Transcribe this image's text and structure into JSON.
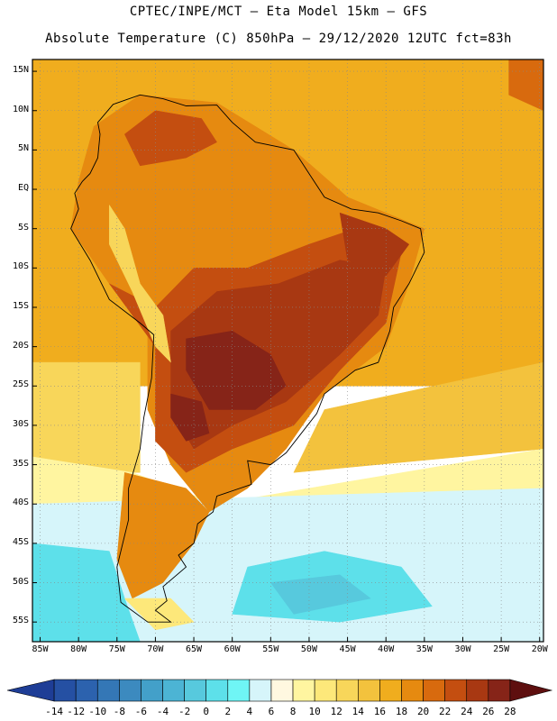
{
  "header": {
    "line1": "CPTEC/INPE/MCT —  Eta Model 15km — GFS",
    "line2": "Absolute Temperature (C) 850hPa — 29/12/2020 12UTC fct=83h"
  },
  "map": {
    "lon_range": [
      -86,
      -19.5
    ],
    "lat_range": [
      -57.5,
      16.5
    ],
    "lat_labels": [
      {
        "label": "15N",
        "lat": 15
      },
      {
        "label": "10N",
        "lat": 10
      },
      {
        "label": "5N",
        "lat": 5
      },
      {
        "label": "EQ",
        "lat": 0
      },
      {
        "label": "5S",
        "lat": -5
      },
      {
        "label": "10S",
        "lat": -10
      },
      {
        "label": "15S",
        "lat": -15
      },
      {
        "label": "20S",
        "lat": -20
      },
      {
        "label": "25S",
        "lat": -25
      },
      {
        "label": "30S",
        "lat": -30
      },
      {
        "label": "35S",
        "lat": -35
      },
      {
        "label": "40S",
        "lat": -40
      },
      {
        "label": "45S",
        "lat": -45
      },
      {
        "label": "50S",
        "lat": -50
      },
      {
        "label": "55S",
        "lat": -55
      }
    ],
    "lon_labels": [
      {
        "label": "85W",
        "lon": -85
      },
      {
        "label": "80W",
        "lon": -80
      },
      {
        "label": "75W",
        "lon": -75
      },
      {
        "label": "70W",
        "lon": -70
      },
      {
        "label": "65W",
        "lon": -65
      },
      {
        "label": "60W",
        "lon": -60
      },
      {
        "label": "55W",
        "lon": -55
      },
      {
        "label": "50W",
        "lon": -50
      },
      {
        "label": "45W",
        "lon": -45
      },
      {
        "label": "40W",
        "lon": -40
      },
      {
        "label": "35W",
        "lon": -35
      },
      {
        "label": "30W",
        "lon": -30
      },
      {
        "label": "25W",
        "lon": -25
      },
      {
        "label": "20W",
        "lon": -20
      }
    ]
  },
  "temperature_field": [
    {
      "name": "ocean-north",
      "temp": 17,
      "poly": [
        [
          -86,
          16.5
        ],
        [
          -19.5,
          16.5
        ],
        [
          -19.5,
          -25
        ],
        [
          -55,
          -25
        ],
        [
          -86,
          -25
        ]
      ]
    },
    {
      "name": "atlantic-south-warm",
      "temp": 15,
      "poly": [
        [
          -48,
          -28
        ],
        [
          -19.5,
          -22
        ],
        [
          -19.5,
          -33
        ],
        [
          -52,
          -36
        ]
      ]
    },
    {
      "name": "pacific-south",
      "temp": 13,
      "poly": [
        [
          -86,
          -22
        ],
        [
          -72,
          -22
        ],
        [
          -72,
          -36
        ],
        [
          -86,
          -36
        ]
      ]
    },
    {
      "name": "transition-band",
      "temp": 9,
      "poly": [
        [
          -86,
          -34
        ],
        [
          -73,
          -36
        ],
        [
          -62,
          -40
        ],
        [
          -50,
          -38
        ],
        [
          -19.5,
          -33
        ],
        [
          -19.5,
          -40
        ],
        [
          -86,
          -42
        ]
      ]
    },
    {
      "name": "cold-south",
      "temp": 5,
      "poly": [
        [
          -86,
          -40
        ],
        [
          -19.5,
          -38
        ],
        [
          -19.5,
          -57.5
        ],
        [
          -86,
          -57.5
        ]
      ]
    },
    {
      "name": "cold-core-sw",
      "temp": 1,
      "poly": [
        [
          -86,
          -45
        ],
        [
          -76,
          -46
        ],
        [
          -74,
          -52
        ],
        [
          -72,
          -57.5
        ],
        [
          -86,
          -57.5
        ]
      ]
    },
    {
      "name": "cold-core-se",
      "temp": 1,
      "poly": [
        [
          -58,
          -48
        ],
        [
          -48,
          -46
        ],
        [
          -38,
          -48
        ],
        [
          -34,
          -53
        ],
        [
          -46,
          -55
        ],
        [
          -60,
          -54
        ]
      ]
    },
    {
      "name": "cold-core-inner",
      "temp": -1,
      "poly": [
        [
          -55,
          -50
        ],
        [
          -46,
          -49
        ],
        [
          -42,
          -52
        ],
        [
          -52,
          -54
        ]
      ]
    },
    {
      "name": "southern-cone",
      "temp": 18,
      "poly": [
        [
          -74,
          -36
        ],
        [
          -66,
          -38
        ],
        [
          -63,
          -41
        ],
        [
          -65,
          -45
        ],
        [
          -69,
          -50
        ],
        [
          -73,
          -52
        ],
        [
          -75,
          -47
        ]
      ]
    },
    {
      "name": "patagonia-tip",
      "temp": 11,
      "poly": [
        [
          -74,
          -52
        ],
        [
          -68,
          -52
        ],
        [
          -65,
          -55
        ],
        [
          -70,
          -56
        ]
      ]
    },
    {
      "name": "continent-base",
      "temp": 19,
      "poly": [
        [
          -78,
          8
        ],
        [
          -72,
          12
        ],
        [
          -62,
          11
        ],
        [
          -52,
          5
        ],
        [
          -45,
          -1
        ],
        [
          -35,
          -5
        ],
        [
          -37,
          -12
        ],
        [
          -40,
          -20
        ],
        [
          -48,
          -26
        ],
        [
          -53,
          -33
        ],
        [
          -58,
          -38
        ],
        [
          -63,
          -41
        ],
        [
          -68,
          -35
        ],
        [
          -71,
          -28
        ],
        [
          -71,
          -18
        ],
        [
          -76,
          -12
        ],
        [
          -81,
          -5
        ],
        [
          -80,
          1
        ]
      ]
    },
    {
      "name": "continent-warm",
      "temp": 22,
      "poly": [
        [
          -76,
          -12
        ],
        [
          -70,
          -15
        ],
        [
          -65,
          -10
        ],
        [
          -58,
          -10
        ],
        [
          -50,
          -7
        ],
        [
          -44,
          -5
        ],
        [
          -38,
          -8
        ],
        [
          -40,
          -17
        ],
        [
          -46,
          -23
        ],
        [
          -52,
          -30
        ],
        [
          -60,
          -33
        ],
        [
          -66,
          -36
        ],
        [
          -70,
          -32
        ],
        [
          -70,
          -20
        ]
      ]
    },
    {
      "name": "continent-hot",
      "temp": 24,
      "poly": [
        [
          -68,
          -18
        ],
        [
          -62,
          -13
        ],
        [
          -54,
          -12
        ],
        [
          -46,
          -9
        ],
        [
          -40,
          -10
        ],
        [
          -41,
          -16
        ],
        [
          -46,
          -21
        ],
        [
          -53,
          -27
        ],
        [
          -60,
          -30
        ],
        [
          -65,
          -33
        ],
        [
          -68,
          -28
        ]
      ]
    },
    {
      "name": "chaco-core",
      "temp": 26,
      "poly": [
        [
          -66,
          -19
        ],
        [
          -60,
          -18
        ],
        [
          -55,
          -21
        ],
        [
          -53,
          -25
        ],
        [
          -57,
          -28
        ],
        [
          -63,
          -28
        ],
        [
          -66,
          -23
        ]
      ]
    },
    {
      "name": "cordoba-core",
      "temp": 26,
      "poly": [
        [
          -68,
          -26
        ],
        [
          -64,
          -27
        ],
        [
          -63,
          -31
        ],
        [
          -66,
          -32
        ],
        [
          -68,
          -29
        ]
      ]
    },
    {
      "name": "sahara-like-ne",
      "temp": 24,
      "poly": [
        [
          -46,
          -3
        ],
        [
          -40,
          -5
        ],
        [
          -37,
          -7
        ],
        [
          -40,
          -11
        ],
        [
          -45,
          -9
        ]
      ]
    },
    {
      "name": "venezuela-warm",
      "temp": 22,
      "poly": [
        [
          -74,
          7
        ],
        [
          -70,
          10
        ],
        [
          -64,
          9
        ],
        [
          -62,
          6
        ],
        [
          -66,
          4
        ],
        [
          -72,
          3
        ]
      ]
    },
    {
      "name": "andes-cool",
      "temp": 13,
      "poly": [
        [
          -76,
          -2
        ],
        [
          -74,
          -5
        ],
        [
          -72,
          -12
        ],
        [
          -69,
          -16
        ],
        [
          -68,
          -22
        ],
        [
          -70,
          -20
        ],
        [
          -73,
          -13
        ],
        [
          -76,
          -7
        ]
      ]
    },
    {
      "name": "caribbean-warm",
      "temp": 21,
      "poly": [
        [
          -24,
          16.5
        ],
        [
          -19.5,
          16.5
        ],
        [
          -19.5,
          10
        ],
        [
          -24,
          12
        ]
      ]
    }
  ],
  "coastline": [
    [
      -77.5,
      8.5
    ],
    [
      -75.5,
      10.8
    ],
    [
      -72,
      12
    ],
    [
      -69,
      11.5
    ],
    [
      -66,
      10.6
    ],
    [
      -62,
      10.7
    ],
    [
      -60,
      8.5
    ],
    [
      -57,
      6
    ],
    [
      -52,
      5
    ],
    [
      -50,
      2
    ],
    [
      -48,
      -1
    ],
    [
      -44.5,
      -2.5
    ],
    [
      -41,
      -3
    ],
    [
      -38,
      -4
    ],
    [
      -35.5,
      -5
    ],
    [
      -35,
      -8
    ],
    [
      -37,
      -12
    ],
    [
      -39,
      -15
    ],
    [
      -39.5,
      -18
    ],
    [
      -41,
      -22
    ],
    [
      -44,
      -23
    ],
    [
      -48,
      -26
    ],
    [
      -49,
      -28.5
    ],
    [
      -51,
      -31
    ],
    [
      -53,
      -33.5
    ],
    [
      -55,
      -35
    ],
    [
      -58,
      -34.5
    ],
    [
      -57.5,
      -37.5
    ],
    [
      -62,
      -39
    ],
    [
      -62.5,
      -41
    ],
    [
      -64.5,
      -42.5
    ],
    [
      -65,
      -45
    ],
    [
      -67,
      -46.5
    ],
    [
      -66,
      -48
    ],
    [
      -69,
      -50.5
    ],
    [
      -68.5,
      -52.3
    ],
    [
      -70,
      -53.5
    ],
    [
      -68,
      -55
    ],
    [
      -71,
      -55
    ],
    [
      -74.5,
      -52.5
    ],
    [
      -75,
      -48
    ],
    [
      -74,
      -44
    ],
    [
      -73.5,
      -42
    ],
    [
      -73.5,
      -38
    ],
    [
      -72,
      -33
    ],
    [
      -71.5,
      -29
    ],
    [
      -70.5,
      -24
    ],
    [
      -70.2,
      -18.5
    ],
    [
      -72,
      -17
    ],
    [
      -76,
      -14
    ],
    [
      -78.5,
      -9
    ],
    [
      -81,
      -5
    ],
    [
      -80,
      -2.5
    ],
    [
      -80.5,
      -0.5
    ],
    [
      -79.5,
      1
    ],
    [
      -78.5,
      2
    ],
    [
      -77.5,
      4
    ],
    [
      -77.2,
      7
    ]
  ],
  "colorbar": {
    "labels": [
      "-14",
      "-12",
      "-10",
      "-8",
      "-6",
      "-4",
      "-2",
      "0",
      "2",
      "4",
      "6",
      "8",
      "10",
      "12",
      "14",
      "16",
      "18",
      "20",
      "22",
      "24",
      "26",
      "28"
    ],
    "colors": [
      "#1e3d96",
      "#2550a3",
      "#2c62ae",
      "#3477b6",
      "#3c8abf",
      "#43a0c9",
      "#4cb4d4",
      "#57c9dd",
      "#5de0ea",
      "#6ff5f5",
      "#d6f5fa",
      "#fff8e0",
      "#fff5a0",
      "#fde87a",
      "#f8d65a",
      "#f3c23d",
      "#f0ad1e",
      "#e68a10",
      "#d86a0e",
      "#c44e10",
      "#a83812",
      "#862418",
      "#5e0f0f"
    ]
  }
}
